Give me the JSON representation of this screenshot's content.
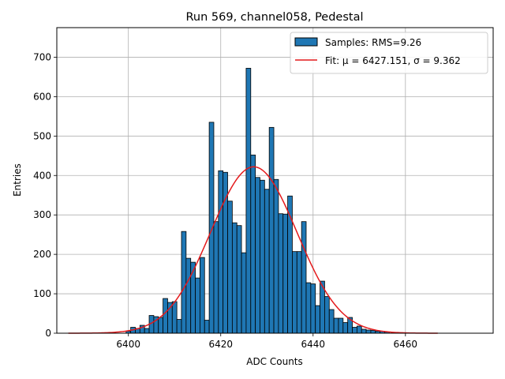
{
  "chart_data": {
    "type": "bar",
    "title": "Run 569, channel058, Pedestal",
    "xlabel": "ADC Counts",
    "ylabel": "Entries",
    "xlim": [
      6384.5,
      6479.0
    ],
    "ylim": [
      0,
      775
    ],
    "xticks": [
      6400,
      6420,
      6440,
      6460
    ],
    "yticks": [
      0,
      100,
      200,
      300,
      400,
      500,
      600,
      700
    ],
    "grid": true,
    "legend_position": "top-right",
    "colors": {
      "bar": "#1f77b4",
      "bar_edge": "#000000",
      "fit": "#e41a1c",
      "grid": "#b0b0b0"
    },
    "histogram": {
      "name": "Samples: RMS=9.26",
      "bin_width": 1,
      "bins": [
        [
          6400,
          5
        ],
        [
          6401,
          15
        ],
        [
          6402,
          12
        ],
        [
          6403,
          20
        ],
        [
          6404,
          12
        ],
        [
          6405,
          45
        ],
        [
          6406,
          42
        ],
        [
          6407,
          40
        ],
        [
          6408,
          88
        ],
        [
          6409,
          78
        ],
        [
          6410,
          80
        ],
        [
          6411,
          35
        ],
        [
          6412,
          258
        ],
        [
          6413,
          190
        ],
        [
          6414,
          180
        ],
        [
          6415,
          140
        ],
        [
          6416,
          192
        ],
        [
          6417,
          33
        ],
        [
          6418,
          535
        ],
        [
          6419,
          283
        ],
        [
          6420,
          412
        ],
        [
          6421,
          408
        ],
        [
          6422,
          335
        ],
        [
          6423,
          280
        ],
        [
          6424,
          273
        ],
        [
          6425,
          204
        ],
        [
          6426,
          672
        ],
        [
          6427,
          452
        ],
        [
          6428,
          395
        ],
        [
          6429,
          388
        ],
        [
          6430,
          365
        ],
        [
          6431,
          522
        ],
        [
          6432,
          390
        ],
        [
          6433,
          303
        ],
        [
          6434,
          302
        ],
        [
          6435,
          348
        ],
        [
          6436,
          207
        ],
        [
          6437,
          207
        ],
        [
          6438,
          283
        ],
        [
          6439,
          128
        ],
        [
          6440,
          125
        ],
        [
          6441,
          70
        ],
        [
          6442,
          132
        ],
        [
          6443,
          93
        ],
        [
          6444,
          60
        ],
        [
          6445,
          38
        ],
        [
          6446,
          38
        ],
        [
          6447,
          27
        ],
        [
          6448,
          40
        ],
        [
          6449,
          15
        ],
        [
          6450,
          18
        ],
        [
          6451,
          10
        ],
        [
          6452,
          8
        ],
        [
          6453,
          7
        ],
        [
          6454,
          5
        ],
        [
          6455,
          5
        ],
        [
          6456,
          3
        ]
      ]
    },
    "fit": {
      "name": "Fit: $\\mu$ = 6427.151, $\\sigma$ = 9.362",
      "display_label": "Fit: μ = 6427.151, σ = 9.362",
      "mu": 6427.151,
      "sigma": 9.362,
      "amplitude": 422,
      "x_range": [
        6387,
        6467
      ]
    }
  }
}
